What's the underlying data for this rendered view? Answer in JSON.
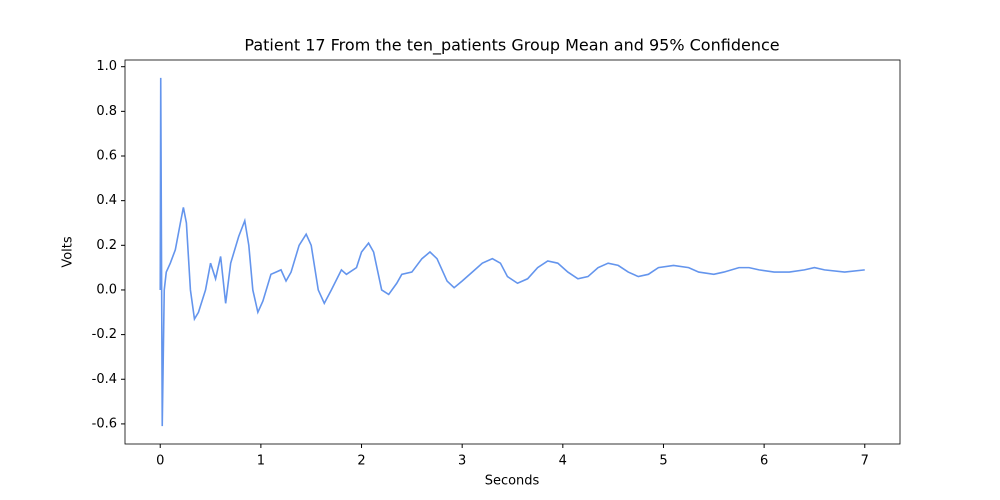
{
  "chart_data": {
    "type": "line",
    "title": "Patient 17 From the ten_patients Group Mean and 95% Confidence",
    "x_label": "Seconds",
    "y_label": "Volts",
    "x": [
      0,
      0.005,
      0.02,
      0.04,
      0.06,
      0.1,
      0.15,
      0.2,
      0.23,
      0.26,
      0.3,
      0.34,
      0.38,
      0.45,
      0.5,
      0.55,
      0.6,
      0.65,
      0.7,
      0.78,
      0.84,
      0.88,
      0.92,
      0.97,
      1.02,
      1.1,
      1.15,
      1.2,
      1.25,
      1.3,
      1.38,
      1.45,
      1.5,
      1.57,
      1.63,
      1.7,
      1.8,
      1.85,
      1.95,
      2.0,
      2.07,
      2.12,
      2.2,
      2.27,
      2.35,
      2.4,
      2.5,
      2.6,
      2.68,
      2.75,
      2.85,
      2.92,
      3.0,
      3.1,
      3.2,
      3.3,
      3.38,
      3.45,
      3.55,
      3.65,
      3.75,
      3.85,
      3.95,
      4.05,
      4.15,
      4.25,
      4.35,
      4.45,
      4.55,
      4.65,
      4.75,
      4.85,
      4.95,
      5.1,
      5.25,
      5.35,
      5.5,
      5.6,
      5.75,
      5.85,
      5.95,
      6.1,
      6.25,
      6.4,
      6.5,
      6.6,
      6.8,
      7.0
    ],
    "series": [
      {
        "name": "Mean",
        "color": "#6495ed",
        "values": [
          0,
          0.95,
          -0.61,
          0.0,
          0.08,
          0.12,
          0.18,
          0.3,
          0.37,
          0.3,
          0.0,
          -0.13,
          -0.1,
          0.0,
          0.12,
          0.05,
          0.15,
          -0.06,
          0.12,
          0.24,
          0.31,
          0.2,
          0.0,
          -0.1,
          -0.05,
          0.07,
          0.08,
          0.09,
          0.04,
          0.08,
          0.2,
          0.25,
          0.2,
          0.0,
          -0.06,
          0.0,
          0.09,
          0.07,
          0.1,
          0.17,
          0.21,
          0.17,
          0.0,
          -0.02,
          0.03,
          0.07,
          0.08,
          0.14,
          0.17,
          0.14,
          0.04,
          0.01,
          0.04,
          0.08,
          0.12,
          0.14,
          0.12,
          0.06,
          0.03,
          0.05,
          0.1,
          0.13,
          0.12,
          0.08,
          0.05,
          0.06,
          0.1,
          0.12,
          0.11,
          0.08,
          0.06,
          0.07,
          0.1,
          0.11,
          0.1,
          0.08,
          0.07,
          0.08,
          0.1,
          0.1,
          0.09,
          0.08,
          0.08,
          0.09,
          0.1,
          0.09,
          0.08,
          0.09
        ]
      }
    ],
    "xlim": [
      -0.35,
      7.35
    ],
    "ylim": [
      -0.69,
      1.03
    ],
    "xticks": [
      0,
      1,
      2,
      3,
      4,
      5,
      6,
      7
    ],
    "yticks": [
      -0.6,
      -0.4,
      -0.2,
      {
        "value": 0,
        "label": "0.0"
      },
      0.2,
      0.4,
      0.6,
      0.8,
      {
        "value": 1,
        "label": "1.0"
      }
    ]
  }
}
